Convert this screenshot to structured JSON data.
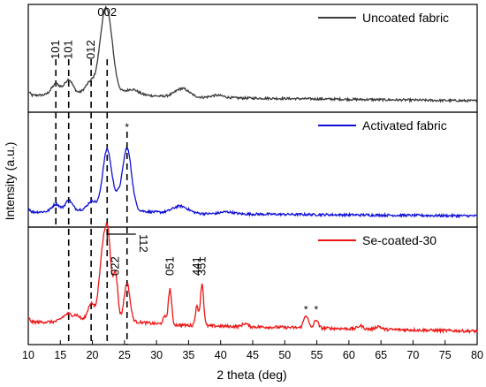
{
  "chart_data": {
    "type": "line",
    "xlabel": "2 theta (deg)",
    "ylabel": "Intensity (a.u.)",
    "xlim": [
      10,
      80
    ],
    "x_ticks": [
      10,
      15,
      20,
      25,
      30,
      35,
      40,
      45,
      50,
      55,
      60,
      65,
      70,
      75,
      80
    ],
    "panels": [
      {
        "name": "Uncoated fabric",
        "color": "#3a3a3a",
        "baseline": 0.045,
        "noise": 0.012,
        "slope": 8e-05,
        "peaks": [
          {
            "x": 14.3,
            "h": 0.11,
            "w": 0.7
          },
          {
            "x": 16.3,
            "h": 0.15,
            "w": 0.65
          },
          {
            "x": 19.8,
            "h": 0.12,
            "w": 0.8
          },
          {
            "x": 22.3,
            "h": 0.82,
            "w": 0.85
          },
          {
            "x": 21.4,
            "h": 0.18,
            "w": 0.6
          },
          {
            "x": 26.2,
            "h": 0.05,
            "w": 0.9
          },
          {
            "x": 34.0,
            "h": 0.09,
            "w": 1.1
          },
          {
            "x": 39.5,
            "h": 0.025,
            "w": 1.0
          }
        ],
        "labels": [
          {
            "text": "101",
            "x": 14.3
          },
          {
            "text": "101",
            "x": 16.3
          },
          {
            "text": "012",
            "x": 19.8
          },
          {
            "text": "002",
            "x": 22.3,
            "top": true
          }
        ]
      },
      {
        "name": "Activated fabric",
        "color": "#1010d8",
        "baseline": 0.04,
        "noise": 0.012,
        "slope": 5e-05,
        "peaks": [
          {
            "x": 14.3,
            "h": 0.07,
            "w": 0.6
          },
          {
            "x": 16.3,
            "h": 0.1,
            "w": 0.55
          },
          {
            "x": 19.9,
            "h": 0.08,
            "w": 0.6
          },
          {
            "x": 22.3,
            "h": 0.58,
            "w": 0.7
          },
          {
            "x": 25.4,
            "h": 0.6,
            "w": 0.7
          },
          {
            "x": 23.9,
            "h": 0.08,
            "w": 0.5
          },
          {
            "x": 33.7,
            "h": 0.07,
            "w": 1.2
          },
          {
            "x": 41.0,
            "h": 0.02,
            "w": 1.0
          }
        ],
        "labels": [
          {
            "text": "*",
            "x": 25.4,
            "top": true
          }
        ]
      },
      {
        "name": "Se-coated-30",
        "color": "#ee1414",
        "baseline": 0.06,
        "noise": 0.014,
        "slope": 0.00012,
        "peaks": [
          {
            "x": 15.4,
            "h": 0.03,
            "w": 0.5
          },
          {
            "x": 16.3,
            "h": 0.06,
            "w": 0.5
          },
          {
            "x": 17.5,
            "h": 0.05,
            "w": 0.5
          },
          {
            "x": 19.8,
            "h": 0.16,
            "w": 0.5
          },
          {
            "x": 21.3,
            "h": 0.38,
            "w": 0.45
          },
          {
            "x": 22.0,
            "h": 0.6,
            "w": 0.45
          },
          {
            "x": 22.6,
            "h": 0.52,
            "w": 0.4
          },
          {
            "x": 23.6,
            "h": 0.45,
            "w": 0.35
          },
          {
            "x": 25.4,
            "h": 0.36,
            "w": 0.45
          },
          {
            "x": 31.3,
            "h": 0.07,
            "w": 0.3
          },
          {
            "x": 32.1,
            "h": 0.34,
            "w": 0.25
          },
          {
            "x": 36.3,
            "h": 0.18,
            "w": 0.25
          },
          {
            "x": 37.1,
            "h": 0.4,
            "w": 0.25
          },
          {
            "x": 43.8,
            "h": 0.03,
            "w": 0.4
          },
          {
            "x": 53.3,
            "h": 0.12,
            "w": 0.35
          },
          {
            "x": 54.9,
            "h": 0.08,
            "w": 0.3
          },
          {
            "x": 61.8,
            "h": 0.03,
            "w": 0.4
          },
          {
            "x": 64.6,
            "h": 0.03,
            "w": 0.4
          }
        ],
        "labels": [
          {
            "text": "022",
            "x": 23.6
          },
          {
            "text": "112",
            "x": 25.4,
            "bracket": true
          },
          {
            "text": "051",
            "x": 32.1
          },
          {
            "text": "441",
            "x": 36.3
          },
          {
            "text": "351",
            "x": 37.1
          },
          {
            "text": "*",
            "x": 53.3,
            "star": true
          },
          {
            "text": "*",
            "x": 54.9,
            "star": true
          }
        ]
      }
    ],
    "reference_lines": [
      {
        "x": 14.3,
        "panels": [
          0,
          1
        ]
      },
      {
        "x": 16.3,
        "panels": [
          0,
          1,
          2
        ]
      },
      {
        "x": 19.8,
        "panels": [
          0,
          1,
          2
        ]
      },
      {
        "x": 22.3,
        "panels": [
          0,
          1,
          2
        ]
      },
      {
        "x": 25.4,
        "panels": [
          1,
          2
        ]
      }
    ]
  }
}
